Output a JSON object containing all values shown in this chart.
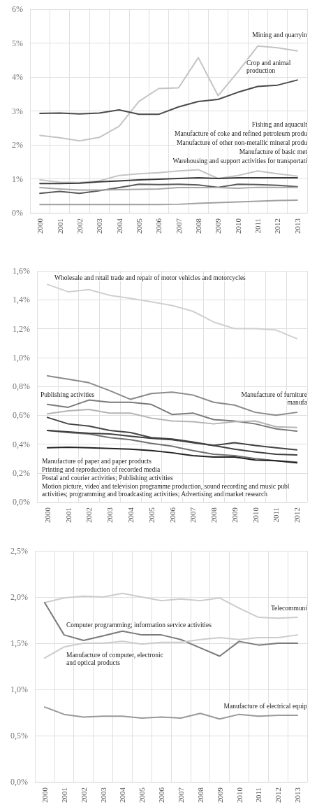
{
  "chart_data": [
    {
      "type": "line",
      "categories": [
        "2000",
        "2001",
        "2002",
        "2003",
        "2004",
        "2005",
        "2006",
        "2007",
        "2008",
        "2009",
        "2010",
        "2011",
        "2012",
        "2013"
      ],
      "ylim": [
        0,
        6
      ],
      "yticks": [
        {
          "value": 0,
          "label": "0%"
        },
        {
          "value": 1,
          "label": "1%"
        },
        {
          "value": 2,
          "label": "2%"
        },
        {
          "value": 3,
          "label": "3%"
        },
        {
          "value": 4,
          "label": "4%"
        },
        {
          "value": 5,
          "label": "5%"
        },
        {
          "value": 6,
          "label": "6%"
        }
      ],
      "grid": true,
      "marker": "none",
      "line_style": "solid",
      "annotations": [
        "Mining and quarryin",
        "Crop and animal\nproduction",
        "Fishing and aquacult",
        "Manufacture of coke and refined petroleum produ",
        "Manufacture of other non-metallic mineral produ",
        "Manufacture of basic met",
        "Warehousing and support activities for transportati"
      ],
      "series": [
        {
          "color": "#c4c4c4",
          "values": [
            2.28,
            2.21,
            2.12,
            2.22,
            2.55,
            3.28,
            3.66,
            3.68,
            4.57,
            3.45,
            4.15,
            4.91,
            4.86,
            4.77
          ]
        },
        {
          "color": "#4a4a4a",
          "values": [
            2.93,
            2.94,
            2.91,
            2.94,
            3.03,
            2.9,
            2.9,
            3.12,
            3.28,
            3.34,
            3.55,
            3.72,
            3.76,
            3.91
          ]
        },
        {
          "color": "#c4c4c4",
          "values": [
            0.97,
            0.9,
            0.89,
            0.94,
            1.1,
            1.15,
            1.18,
            1.23,
            1.27,
            1.01,
            1.1,
            1.23,
            1.15,
            1.08
          ]
        },
        {
          "color": "#3a3a3a",
          "values": [
            0.86,
            0.86,
            0.87,
            0.91,
            0.94,
            0.97,
            0.99,
            1.01,
            1.03,
            1.01,
            1.03,
            1.03,
            1.03,
            1.03
          ]
        },
        {
          "color": "#5a5a5a",
          "values": [
            0.57,
            0.63,
            0.57,
            0.65,
            0.74,
            0.84,
            0.83,
            0.84,
            0.82,
            0.75,
            0.84,
            0.83,
            0.81,
            0.77
          ]
        },
        {
          "color": "#a8a8a8",
          "values": [
            0.74,
            0.7,
            0.67,
            0.67,
            0.68,
            0.69,
            0.7,
            0.74,
            0.74,
            0.74,
            0.72,
            0.75,
            0.75,
            0.75
          ]
        },
        {
          "color": "#a0a0a0",
          "values": [
            0.24,
            0.24,
            0.24,
            0.24,
            0.24,
            0.24,
            0.24,
            0.25,
            0.28,
            0.3,
            0.32,
            0.34,
            0.36,
            0.37
          ]
        }
      ]
    },
    {
      "type": "line",
      "categories": [
        "2000",
        "2001",
        "2002",
        "2003",
        "2004",
        "2005",
        "2006",
        "2007",
        "2008",
        "2009",
        "2010",
        "2011",
        "2012"
      ],
      "ylim": [
        0,
        1.6
      ],
      "yticks": [
        {
          "value": 0,
          "label": "0,0%"
        },
        {
          "value": 0.2,
          "label": "0,2%"
        },
        {
          "value": 0.4,
          "label": "0,4%"
        },
        {
          "value": 0.6,
          "label": "0,6%"
        },
        {
          "value": 0.8,
          "label": "0,8%"
        },
        {
          "value": 1,
          "label": "1,0%"
        },
        {
          "value": 1.2,
          "label": "1,2%"
        },
        {
          "value": 1.4,
          "label": "1,4%"
        },
        {
          "value": 1.6,
          "label": "1,6%"
        }
      ],
      "grid": true,
      "marker": "none",
      "line_style": "solid",
      "annotations": [
        "Wholesale and retail trade and repair of motor vehicles and motorcycles",
        "Publishing activities",
        "Manufacture of furniture\nmanufa",
        "Manufacture of paper and paper products",
        "Printing and reproduction of recorded media",
        "Postal and courier activities; Publishing activities",
        "Motion picture, video and television programme production, sound recording and music publ activities; programming and broadcasting activities; Advertising and market research"
      ],
      "series": [
        {
          "color": "#d0d0d0",
          "values": [
            1.506,
            1.455,
            1.47,
            1.43,
            1.41,
            1.385,
            1.36,
            1.32,
            1.245,
            1.2,
            1.2,
            1.19,
            1.13
          ]
        },
        {
          "color": "#8a8a8a",
          "values": [
            0.873,
            0.85,
            0.825,
            0.77,
            0.71,
            0.75,
            0.76,
            0.74,
            0.69,
            0.67,
            0.62,
            0.6,
            0.62
          ]
        },
        {
          "color": "#7a7a7a",
          "values": [
            0.675,
            0.655,
            0.705,
            0.69,
            0.69,
            0.675,
            0.605,
            0.615,
            0.57,
            0.56,
            0.54,
            0.505,
            0.49
          ]
        },
        {
          "color": "#b4b4b4",
          "values": [
            0.61,
            0.63,
            0.64,
            0.615,
            0.615,
            0.58,
            0.56,
            0.555,
            0.54,
            0.555,
            0.56,
            0.52,
            0.515
          ]
        },
        {
          "color": "#444444",
          "values": [
            0.585,
            0.54,
            0.525,
            0.495,
            0.48,
            0.445,
            0.435,
            0.415,
            0.39,
            0.41,
            0.39,
            0.375,
            0.36
          ]
        },
        {
          "color": "#707070",
          "values": [
            0.495,
            0.48,
            0.47,
            0.445,
            0.43,
            0.405,
            0.385,
            0.355,
            0.33,
            0.32,
            0.3,
            0.285,
            0.275
          ]
        },
        {
          "color": "#404040",
          "values": [
            0.495,
            0.485,
            0.475,
            0.47,
            0.455,
            0.44,
            0.43,
            0.41,
            0.39,
            0.365,
            0.345,
            0.33,
            0.325
          ]
        },
        {
          "color": "#222222",
          "values": [
            0.375,
            0.378,
            0.375,
            0.37,
            0.365,
            0.355,
            0.34,
            0.32,
            0.31,
            0.31,
            0.29,
            0.285,
            0.27
          ]
        }
      ]
    },
    {
      "type": "line",
      "categories": [
        "2000",
        "2001",
        "2002",
        "2003",
        "2004",
        "2005",
        "2006",
        "2007",
        "2008",
        "2009",
        "2010",
        "2011",
        "2012",
        "2013"
      ],
      "ylim": [
        0,
        2.5
      ],
      "yticks": [
        {
          "value": 0,
          "label": "0,0%"
        },
        {
          "value": 0.5,
          "label": "0,5%"
        },
        {
          "value": 1,
          "label": "1,0%"
        },
        {
          "value": 1.5,
          "label": "1,5%"
        },
        {
          "value": 2,
          "label": "2,0%"
        },
        {
          "value": 2.5,
          "label": "2,5%"
        }
      ],
      "grid": true,
      "marker": "none",
      "line_style": "solid",
      "annotations": [
        "Telecommuni",
        "Computer programming; information service activities",
        "Manufacture of computer, electronic\nand optical products",
        "Manufacture of electrical equip"
      ],
      "series": [
        {
          "color": "#cccccc",
          "values": [
            1.94,
            1.99,
            2.01,
            2.0,
            2.04,
            2.0,
            1.96,
            1.98,
            1.96,
            1.99,
            1.88,
            1.78,
            1.77,
            1.78
          ]
        },
        {
          "color": "#7a7a7a",
          "values": [
            1.94,
            1.59,
            1.53,
            1.58,
            1.63,
            1.59,
            1.59,
            1.54,
            1.45,
            1.36,
            1.52,
            1.48,
            1.5,
            1.5
          ]
        },
        {
          "color": "#cccccc",
          "values": [
            1.34,
            1.46,
            1.5,
            1.5,
            1.52,
            1.49,
            1.51,
            1.51,
            1.54,
            1.56,
            1.54,
            1.56,
            1.56,
            1.59
          ]
        },
        {
          "color": "#999999",
          "values": [
            0.81,
            0.73,
            0.7,
            0.71,
            0.71,
            0.69,
            0.7,
            0.69,
            0.74,
            0.68,
            0.73,
            0.71,
            0.72,
            0.72
          ]
        }
      ]
    }
  ]
}
